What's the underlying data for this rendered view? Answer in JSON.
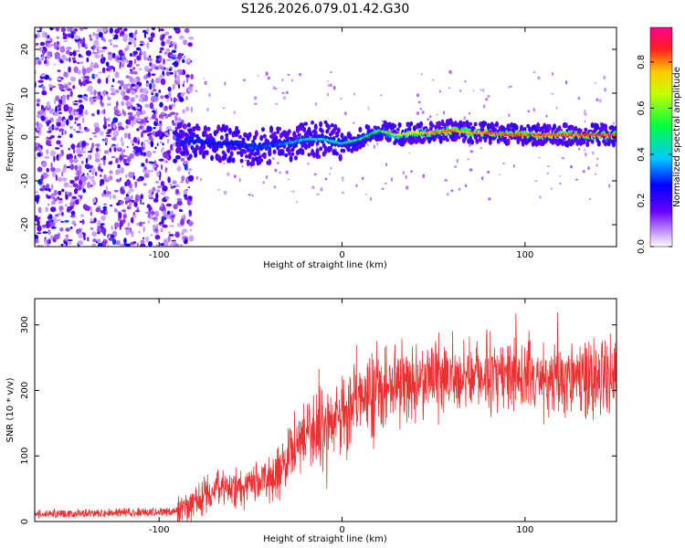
{
  "chart_data": [
    {
      "type": "heatmap",
      "title": "S126.2026.079.01.42.G30",
      "xlabel": "Height of straight line (km)",
      "ylabel": "Frequency (Hz)",
      "xlim": [
        -168,
        150
      ],
      "ylim": [
        -25,
        25
      ],
      "xticks": [
        -100,
        0,
        100
      ],
      "yticks": [
        -20,
        -10,
        0,
        10,
        20
      ],
      "colorbar": {
        "label": "Normalized spectral amplitude",
        "range": [
          0.0,
          0.95
        ],
        "ticks": [
          0.0,
          0.2,
          0.4,
          0.6,
          0.8
        ],
        "colormap": "rainbow (magenta-blue-cyan-green-yellow-red)"
      },
      "noise_region_x": [
        -168,
        -88
      ],
      "signal_track": {
        "description": "Doppler frequency ridge versus height",
        "x": [
          -90,
          -80,
          -70,
          -60,
          -50,
          -40,
          -30,
          -20,
          -10,
          0,
          10,
          20,
          30,
          40,
          50,
          60,
          70,
          80,
          90,
          100,
          110,
          120,
          130,
          140,
          150
        ],
        "frequency": [
          -1,
          -1,
          -1.5,
          -1.5,
          -2.5,
          -2,
          -1.5,
          -0.5,
          -0.5,
          -1.5,
          -0.5,
          1.5,
          0.5,
          1,
          1,
          1.5,
          1,
          1,
          0.5,
          0.5,
          0.5,
          0.5,
          0.5,
          0.5,
          0.5
        ],
        "amplitude": [
          0.2,
          0.3,
          0.3,
          0.3,
          0.35,
          0.35,
          0.4,
          0.45,
          0.5,
          0.5,
          0.55,
          0.6,
          0.75,
          0.8,
          0.85,
          0.9,
          0.85,
          0.9,
          0.9,
          0.9,
          0.9,
          0.9,
          0.9,
          0.9,
          0.9
        ]
      }
    },
    {
      "type": "line",
      "title": "",
      "xlabel": "Height of straight line (km)",
      "ylabel": "SNR (10 * v/v)",
      "xlim": [
        -168,
        150
      ],
      "ylim": [
        0,
        340
      ],
      "xticks": [
        -100,
        0,
        100
      ],
      "yticks": [
        0,
        100,
        200,
        300
      ],
      "series": [
        {
          "name": "SNR",
          "color": "#ee3030",
          "x": [
            -168,
            -150,
            -130,
            -110,
            -95,
            -85,
            -80,
            -75,
            -70,
            -65,
            -60,
            -55,
            -50,
            -45,
            -40,
            -35,
            -30,
            -25,
            -20,
            -15,
            -10,
            -5,
            0,
            5,
            10,
            15,
            20,
            25,
            30,
            35,
            40,
            50,
            60,
            70,
            80,
            90,
            100,
            110,
            120,
            130,
            140,
            150
          ],
          "values": [
            12,
            12,
            13,
            14,
            15,
            20,
            30,
            40,
            45,
            50,
            45,
            50,
            55,
            60,
            60,
            75,
            90,
            110,
            130,
            135,
            140,
            150,
            165,
            180,
            185,
            190,
            200,
            205,
            210,
            215,
            215,
            220,
            220,
            225,
            225,
            225,
            225,
            220,
            225,
            220,
            225,
            230
          ]
        }
      ]
    }
  ]
}
